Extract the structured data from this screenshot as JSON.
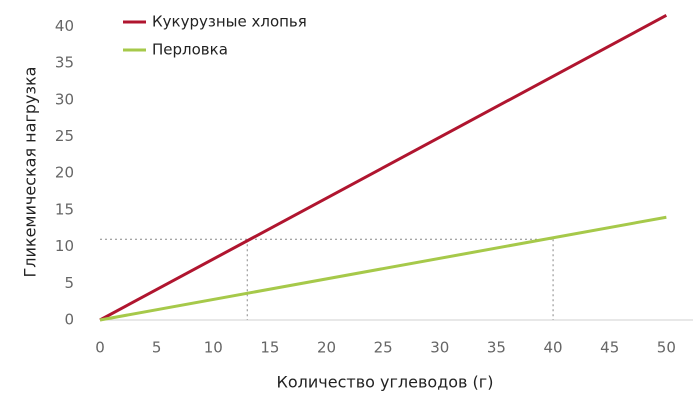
{
  "chart_data": {
    "type": "line",
    "x_label": "Количество углеводов (г)",
    "y_label": "Гликемическая нагрузка",
    "x": [
      0,
      50
    ],
    "series": [
      {
        "name": "Кукурузные хлопья",
        "color": "#b0152f",
        "values": [
          0,
          41.5
        ]
      },
      {
        "name": "Перловка",
        "color": "#a6c94a",
        "values": [
          0,
          14
        ]
      }
    ],
    "xlim": [
      0,
      52
    ],
    "ylim": [
      0,
      42.5
    ],
    "xticks": [
      0,
      5,
      10,
      15,
      20,
      25,
      30,
      35,
      40,
      45,
      50
    ],
    "yticks": [
      0,
      5,
      10,
      15,
      20,
      25,
      30,
      35,
      40
    ],
    "guides": {
      "y": 11,
      "x": [
        13,
        40
      ]
    },
    "grid": false,
    "legend": "top-left"
  }
}
